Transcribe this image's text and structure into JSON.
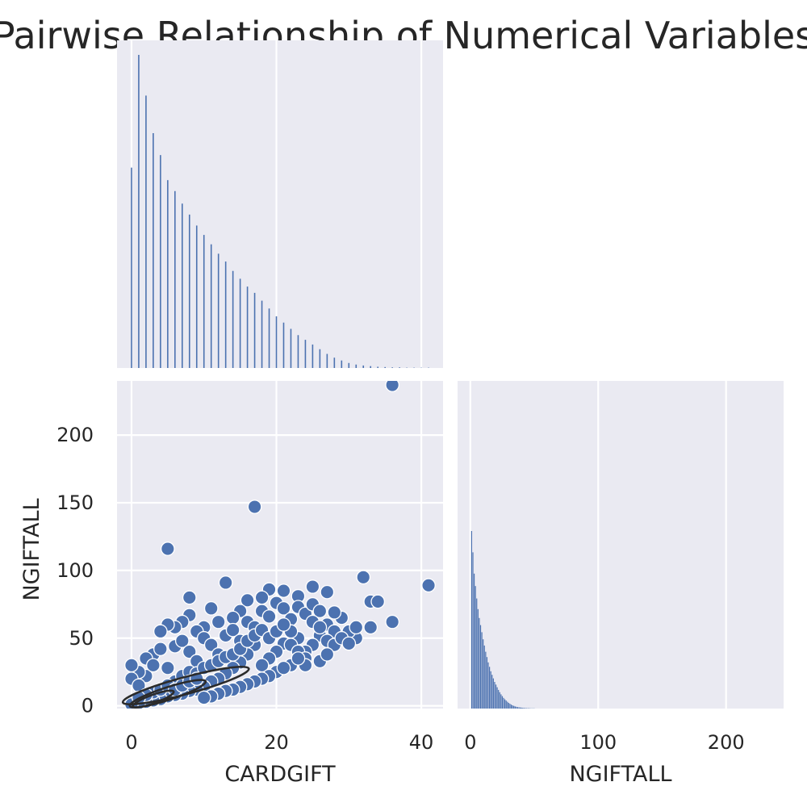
{
  "title": "Pairwise Relationship of Numerical Variables",
  "colors": {
    "panel_bg": "#eaeaf2",
    "grid": "#ffffff",
    "series": "#4c72b0",
    "kde": "#2b2b2b",
    "text": "#262626"
  },
  "chart_data": [
    {
      "type": "bar",
      "panel": "diagonal-cardgift",
      "variable": "CARDGIFT",
      "xlim": [
        -2,
        43
      ],
      "xticks": [
        0,
        20,
        40
      ],
      "grid": true,
      "bin_centers": [
        0,
        1,
        2,
        3,
        4,
        5,
        6,
        7,
        8,
        9,
        10,
        11,
        12,
        13,
        14,
        15,
        16,
        17,
        18,
        19,
        20,
        21,
        22,
        23,
        24,
        25,
        26,
        27,
        28,
        29,
        30,
        31,
        32,
        33,
        34,
        35,
        36,
        37,
        38,
        39,
        40,
        41
      ],
      "counts": [
        640,
        1000,
        870,
        750,
        680,
        600,
        565,
        525,
        490,
        455,
        425,
        395,
        365,
        340,
        310,
        285,
        260,
        240,
        215,
        190,
        165,
        145,
        125,
        105,
        90,
        75,
        60,
        45,
        33,
        24,
        16,
        11,
        8,
        6,
        4,
        3,
        2,
        2,
        1,
        1,
        1,
        1
      ]
    },
    {
      "type": "scatter",
      "panel": "cardgift-vs-ngiftall",
      "xlabel": "CARDGIFT",
      "ylabel": "NGIFTALL",
      "xlim": [
        -2,
        43
      ],
      "ylim": [
        -2,
        240
      ],
      "xticks": [
        0,
        20,
        40
      ],
      "yticks": [
        0,
        50,
        100,
        150,
        200
      ],
      "grid": true,
      "points": [
        [
          36,
          237
        ],
        [
          17,
          147
        ],
        [
          5,
          116
        ],
        [
          41,
          89
        ],
        [
          32,
          95
        ],
        [
          13,
          91
        ],
        [
          8,
          80
        ],
        [
          33,
          77
        ],
        [
          34,
          77
        ],
        [
          27,
          84
        ],
        [
          36,
          62
        ],
        [
          33,
          58
        ],
        [
          31,
          50
        ],
        [
          30,
          55
        ],
        [
          29,
          65
        ],
        [
          28,
          69
        ],
        [
          25,
          88
        ],
        [
          23,
          81
        ],
        [
          21,
          85
        ],
        [
          19,
          86
        ],
        [
          18,
          80
        ],
        [
          16,
          78
        ],
        [
          15,
          70
        ],
        [
          14,
          65
        ],
        [
          12,
          62
        ],
        [
          11,
          72
        ],
        [
          10,
          58
        ],
        [
          9,
          55
        ],
        [
          8,
          67
        ],
        [
          7,
          62
        ],
        [
          6,
          58
        ],
        [
          5,
          60
        ],
        [
          4,
          55
        ],
        [
          3,
          38
        ],
        [
          2,
          22
        ],
        [
          1,
          25
        ],
        [
          0,
          30
        ],
        [
          0,
          20
        ],
        [
          1,
          15
        ],
        [
          2,
          35
        ],
        [
          3,
          30
        ],
        [
          4,
          42
        ],
        [
          5,
          28
        ],
        [
          6,
          44
        ],
        [
          7,
          48
        ],
        [
          8,
          40
        ],
        [
          9,
          33
        ],
        [
          10,
          50
        ],
        [
          11,
          45
        ],
        [
          12,
          38
        ],
        [
          13,
          52
        ],
        [
          14,
          56
        ],
        [
          15,
          48
        ],
        [
          16,
          62
        ],
        [
          17,
          58
        ],
        [
          18,
          70
        ],
        [
          19,
          66
        ],
        [
          20,
          76
        ],
        [
          21,
          72
        ],
        [
          22,
          64
        ],
        [
          23,
          73
        ],
        [
          24,
          68
        ],
        [
          25,
          75
        ],
        [
          26,
          70
        ],
        [
          27,
          60
        ],
        [
          28,
          55
        ],
        [
          26,
          52
        ],
        [
          25,
          45
        ],
        [
          24,
          40
        ],
        [
          23,
          50
        ],
        [
          22,
          55
        ],
        [
          21,
          46
        ],
        [
          20,
          40
        ],
        [
          19,
          35
        ],
        [
          18,
          30
        ],
        [
          17,
          45
        ],
        [
          16,
          38
        ],
        [
          15,
          32
        ],
        [
          14,
          28
        ],
        [
          13,
          24
        ],
        [
          12,
          20
        ],
        [
          11,
          18
        ],
        [
          10,
          14
        ],
        [
          9,
          12
        ],
        [
          8,
          11
        ],
        [
          7,
          9
        ],
        [
          6,
          8
        ],
        [
          5,
          7
        ],
        [
          4,
          5
        ],
        [
          3,
          4
        ],
        [
          2,
          3
        ],
        [
          1,
          2
        ],
        [
          0,
          1
        ],
        [
          6,
          18
        ],
        [
          7,
          22
        ],
        [
          8,
          25
        ],
        [
          9,
          24
        ],
        [
          10,
          28
        ],
        [
          11,
          30
        ],
        [
          12,
          33
        ],
        [
          13,
          36
        ],
        [
          14,
          38
        ],
        [
          15,
          42
        ],
        [
          16,
          48
        ],
        [
          17,
          52
        ],
        [
          18,
          56
        ],
        [
          19,
          50
        ],
        [
          20,
          55
        ],
        [
          21,
          60
        ],
        [
          22,
          45
        ],
        [
          23,
          40
        ],
        [
          24,
          35
        ],
        [
          25,
          62
        ],
        [
          26,
          58
        ],
        [
          27,
          48
        ],
        [
          28,
          45
        ],
        [
          29,
          50
        ],
        [
          30,
          46
        ],
        [
          31,
          58
        ],
        [
          22,
          30
        ],
        [
          20,
          25
        ],
        [
          19,
          22
        ],
        [
          18,
          20
        ],
        [
          21,
          28
        ],
        [
          24,
          30
        ],
        [
          26,
          33
        ],
        [
          23,
          35
        ],
        [
          27,
          38
        ],
        [
          17,
          18
        ],
        [
          16,
          16
        ],
        [
          15,
          14
        ],
        [
          14,
          12
        ],
        [
          13,
          11
        ],
        [
          12,
          9
        ],
        [
          11,
          7
        ],
        [
          10,
          6
        ],
        [
          3,
          10
        ],
        [
          4,
          12
        ],
        [
          5,
          15
        ],
        [
          2,
          8
        ],
        [
          1,
          6
        ],
        [
          6,
          12
        ],
        [
          7,
          15
        ],
        [
          8,
          18
        ],
        [
          9,
          20
        ]
      ],
      "kde_levels": [
        {
          "cx": 7.5,
          "cy": 15,
          "rx": 9,
          "ry": 2.4,
          "angle_deg": 15
        },
        {
          "cx": 5,
          "cy": 9,
          "rx": 5.5,
          "ry": 1.8,
          "angle_deg": 18
        },
        {
          "cx": 3,
          "cy": 5,
          "rx": 3,
          "ry": 1.2,
          "angle_deg": 20
        }
      ]
    },
    {
      "type": "bar",
      "panel": "diagonal-ngiftall",
      "xlabel": "NGIFTALL",
      "variable": "NGIFTALL",
      "xlim": [
        -10,
        245
      ],
      "xticks": [
        0,
        100,
        200
      ],
      "grid": true,
      "bin_centers": [
        1,
        2,
        3,
        4,
        5,
        6,
        7,
        8,
        9,
        10,
        11,
        12,
        13,
        14,
        15,
        16,
        17,
        18,
        19,
        20,
        21,
        22,
        23,
        24,
        25,
        26,
        27,
        28,
        29,
        30,
        31,
        32,
        33,
        34,
        35,
        36,
        37,
        38,
        39,
        40,
        41,
        42,
        43,
        44,
        45,
        46,
        47,
        48,
        49,
        50
      ],
      "counts": [
        1000,
        880,
        760,
        690,
        620,
        560,
        510,
        470,
        430,
        390,
        355,
        320,
        290,
        260,
        235,
        210,
        190,
        170,
        150,
        135,
        120,
        105,
        92,
        80,
        70,
        60,
        52,
        45,
        38,
        32,
        27,
        22,
        18,
        15,
        12,
        10,
        8,
        7,
        6,
        5,
        4,
        3,
        3,
        2,
        2,
        2,
        1,
        1,
        1,
        1
      ]
    }
  ]
}
